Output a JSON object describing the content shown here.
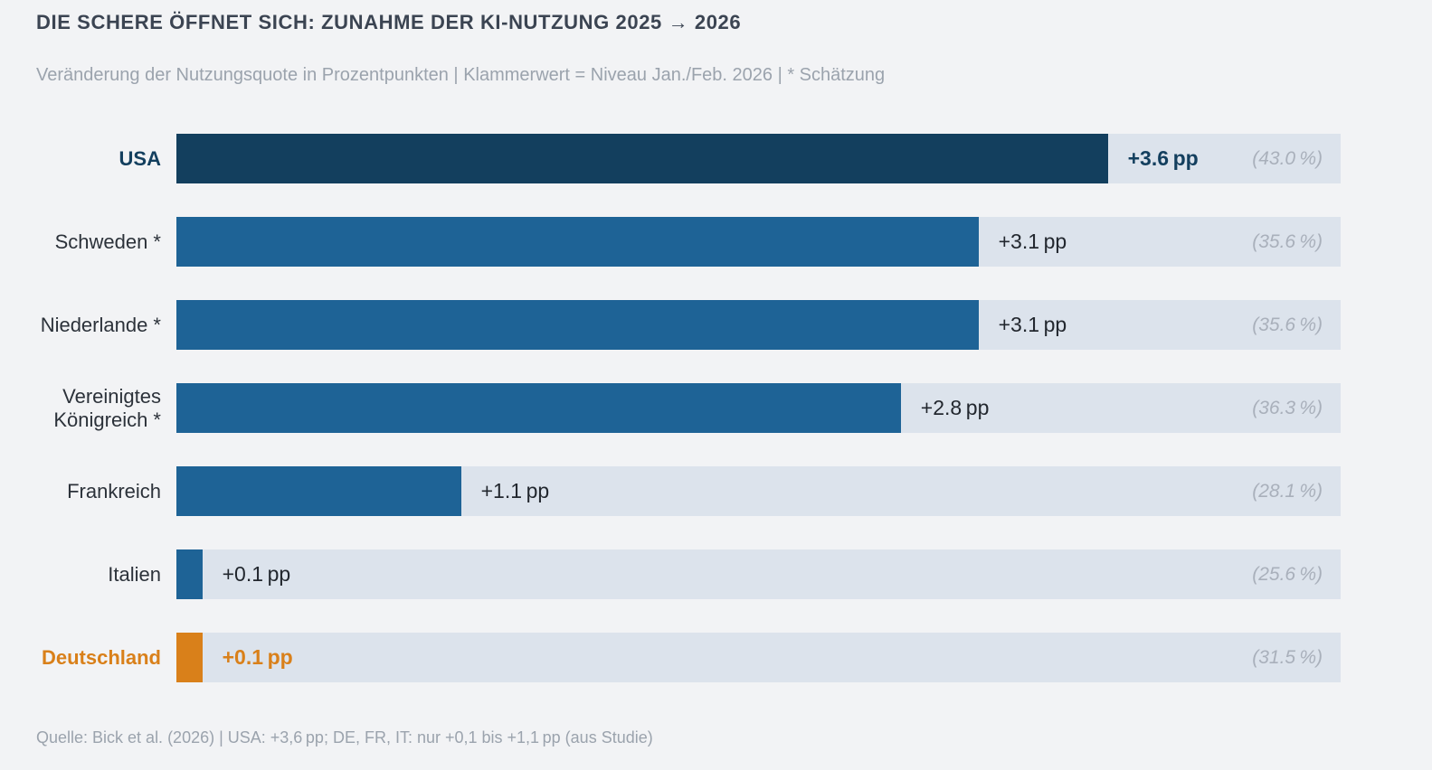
{
  "header": {
    "title": "DIE SCHERE ÖFFNET SICH: ZUNAHME DER KI-NUTZUNG 2025 → 2026",
    "subtitle": "Veränderung der Nutzungsquote in Prozentpunkten | Klammerwert = Niveau Jan./Feb. 2026 | * Schätzung"
  },
  "footer": {
    "source": "Quelle: Bick et al. (2026) | USA: +3,6 pp; DE, FR, IT: nur +0,1 bis +1,1 pp (aus Studie)"
  },
  "colors": {
    "background": "#f2f3f5",
    "track": "#dce3ec",
    "navy": "#133f5e",
    "blue": "#1e6396",
    "orange": "#d9801a",
    "title_text": "#3b4452",
    "label_text": "#2c323a",
    "value_text": "#22272e",
    "percent_text": "#a9b0bb",
    "muted_text": "#9ba3ad"
  },
  "chart_data": {
    "type": "bar",
    "orientation": "horizontal",
    "title": "DIE SCHERE ÖFFNET SICH: ZUNAHME DER KI-NUTZUNG 2025 → 2026",
    "subtitle": "Veränderung der Nutzungsquote in Prozentpunkten | Klammerwert = Niveau Jan./Feb. 2026 | * Schätzung",
    "source": "Quelle: Bick et al. (2026) | USA: +3,6 pp; DE, FR, IT: nur +0,1 bis +1,1 pp (aus Studie)",
    "unit": "Prozentpunkte (pp)",
    "xlim": [
      0,
      4.5
    ],
    "grid": false,
    "legend": false,
    "categories": [
      "USA",
      "Schweden *",
      "Niederlande *",
      "Vereinigtes Königreich *",
      "Frankreich",
      "Italien",
      "Deutschland"
    ],
    "values_pp": [
      3.6,
      3.1,
      3.1,
      2.8,
      1.1,
      0.1,
      0.1
    ],
    "levels_jan_feb_2026_pct": [
      43.0,
      35.6,
      35.6,
      36.3,
      28.1,
      25.6,
      31.5
    ],
    "bars": [
      {
        "label": "USA",
        "value_pp": 3.6,
        "value_label": "+3.6 pp",
        "level_pct": 43.0,
        "level_label": "(43.0 %)",
        "estimated": false,
        "emphasis": "navy"
      },
      {
        "label": "Schweden *",
        "value_pp": 3.1,
        "value_label": "+3.1 pp",
        "level_pct": 35.6,
        "level_label": "(35.6 %)",
        "estimated": true,
        "emphasis": "default"
      },
      {
        "label": "Niederlande *",
        "value_pp": 3.1,
        "value_label": "+3.1 pp",
        "level_pct": 35.6,
        "level_label": "(35.6 %)",
        "estimated": true,
        "emphasis": "default"
      },
      {
        "label": "Vereinigtes Königreich *",
        "value_pp": 2.8,
        "value_label": "+2.8 pp",
        "level_pct": 36.3,
        "level_label": "(36.3 %)",
        "estimated": true,
        "emphasis": "default"
      },
      {
        "label": "Frankreich",
        "value_pp": 1.1,
        "value_label": "+1.1 pp",
        "level_pct": 28.1,
        "level_label": "(28.1 %)",
        "estimated": false,
        "emphasis": "default"
      },
      {
        "label": "Italien",
        "value_pp": 0.1,
        "value_label": "+0.1 pp",
        "level_pct": 25.6,
        "level_label": "(25.6 %)",
        "estimated": false,
        "emphasis": "default"
      },
      {
        "label": "Deutschland",
        "value_pp": 0.1,
        "value_label": "+0.1 pp",
        "level_pct": 31.5,
        "level_label": "(31.5 %)",
        "estimated": false,
        "emphasis": "orange"
      }
    ]
  }
}
